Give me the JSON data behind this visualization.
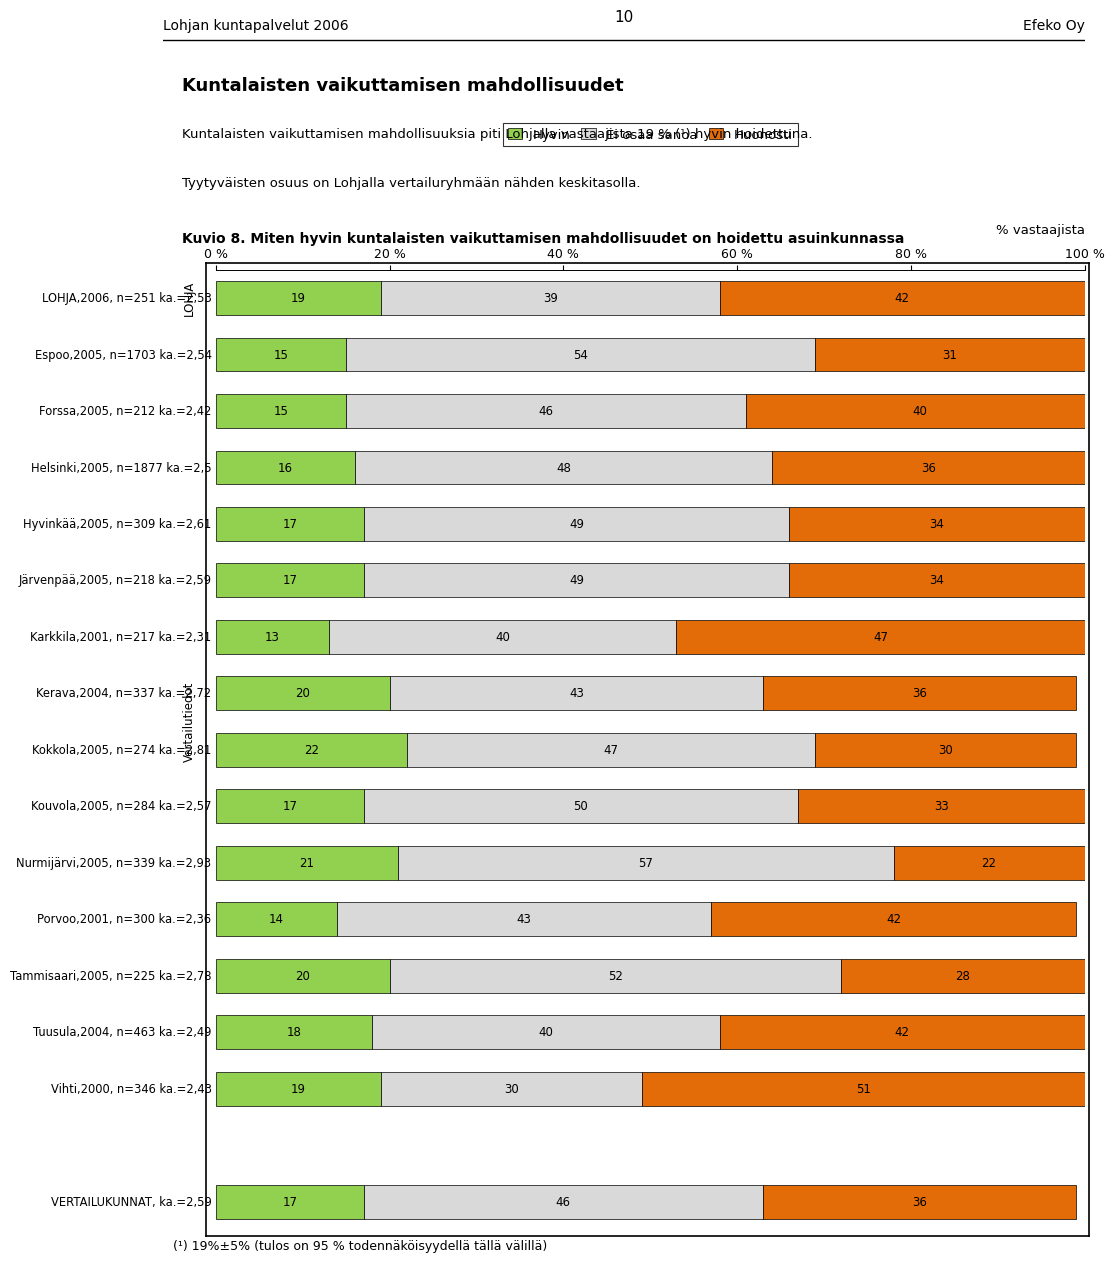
{
  "page_number": "10",
  "header_left": "Lohjan kuntapalvelut 2006",
  "header_right": "Efeko Oy",
  "title_bold": "Kuntalaisten vaikuttamisen mahdollisuudet",
  "subtitle1": "Kuntalaisten vaikuttamisen mahdollisuuksia piti Lohjalla vastaajista 19 % (¹) hyvin hoidettuna.",
  "subtitle2": "Tyytyväisten osuus on Lohjalla vertailuryhmään nähden keskitasolla.",
  "kuvio_label": "Kuvio 8. Miten hyvin kuntalaisten vaikuttamisen mahdollisuudet on hoidettu asuinkunnassa",
  "x_label": "% vastaajista",
  "x_ticks": [
    "0 %",
    "20 %",
    "40 %",
    "60 %",
    "80 %",
    "100 %"
  ],
  "x_tick_vals": [
    0,
    20,
    40,
    60,
    80,
    100
  ],
  "rows": [
    {
      "label": "LOHJA,2006, n=251 ka.=2,53",
      "hyvin": 19,
      "eos": 39,
      "huonosti": 42,
      "is_lohja": true,
      "is_vertailu": false
    },
    {
      "label": "Espoo,2005, n=1703 ka.=2,54",
      "hyvin": 15,
      "eos": 54,
      "huonosti": 31,
      "is_lohja": false,
      "is_vertailu": false
    },
    {
      "label": "Forssa,2005, n=212 ka.=2,42",
      "hyvin": 15,
      "eos": 46,
      "huonosti": 40,
      "is_lohja": false,
      "is_vertailu": false
    },
    {
      "label": "Helsinki,2005, n=1877 ka.=2,5",
      "hyvin": 16,
      "eos": 48,
      "huonosti": 36,
      "is_lohja": false,
      "is_vertailu": false
    },
    {
      "label": "Hyvinкää,2005, n=309 ka.=2,61",
      "hyvin": 17,
      "eos": 49,
      "huonosti": 34,
      "is_lohja": false,
      "is_vertailu": false
    },
    {
      "label": "Järvenpää,2005, n=218 ka.=2,59",
      "hyvin": 17,
      "eos": 49,
      "huonosti": 34,
      "is_lohja": false,
      "is_vertailu": false
    },
    {
      "label": "Karkkila,2001, n=217 ka.=2,31",
      "hyvin": 13,
      "eos": 40,
      "huonosti": 47,
      "is_lohja": false,
      "is_vertailu": false
    },
    {
      "label": "Kerava,2004, n=337 ka.=2,72",
      "hyvin": 20,
      "eos": 43,
      "huonosti": 36,
      "is_lohja": false,
      "is_vertailu": false
    },
    {
      "label": "Kokkola,2005, n=274 ka.=2,81",
      "hyvin": 22,
      "eos": 47,
      "huonosti": 30,
      "is_lohja": false,
      "is_vertailu": false
    },
    {
      "label": "Kouvola,2005, n=284 ka.=2,57",
      "hyvin": 17,
      "eos": 50,
      "huonosti": 33,
      "is_lohja": false,
      "is_vertailu": false
    },
    {
      "label": "Nurmijärvi,2005, n=339 ka.=2,93",
      "hyvin": 21,
      "eos": 57,
      "huonosti": 22,
      "is_lohja": false,
      "is_vertailu": false
    },
    {
      "label": "Porvoo,2001, n=300 ka.=2,36",
      "hyvin": 14,
      "eos": 43,
      "huonosti": 42,
      "is_lohja": false,
      "is_vertailu": false
    },
    {
      "label": "Tammisaari,2005, n=225 ka.=2,78",
      "hyvin": 20,
      "eos": 52,
      "huonosti": 28,
      "is_lohja": false,
      "is_vertailu": false
    },
    {
      "label": "Tuusula,2004, n=463 ka.=2,49",
      "hyvin": 18,
      "eos": 40,
      "huonosti": 42,
      "is_lohja": false,
      "is_vertailu": false
    },
    {
      "label": "Vihti,2000, n=346 ka.=2,43",
      "hyvin": 19,
      "eos": 30,
      "huonosti": 51,
      "is_lohja": false,
      "is_vertailu": false
    },
    {
      "label": "VERTAILUKUNNAT, ka.=2,59",
      "hyvin": 17,
      "eos": 46,
      "huonosti": 36,
      "is_lohja": false,
      "is_vertailu": true
    }
  ],
  "lohja_group_label": "LOHJA",
  "vertailu_group_label": "Vertailutiedot",
  "color_hyvin": "#92d050",
  "color_eos": "#d9d9d9",
  "color_huonosti": "#e36c09",
  "footnote": "(¹) 19%±5% (tulos on 95 % todennäköisyydellä tällä välillä)"
}
